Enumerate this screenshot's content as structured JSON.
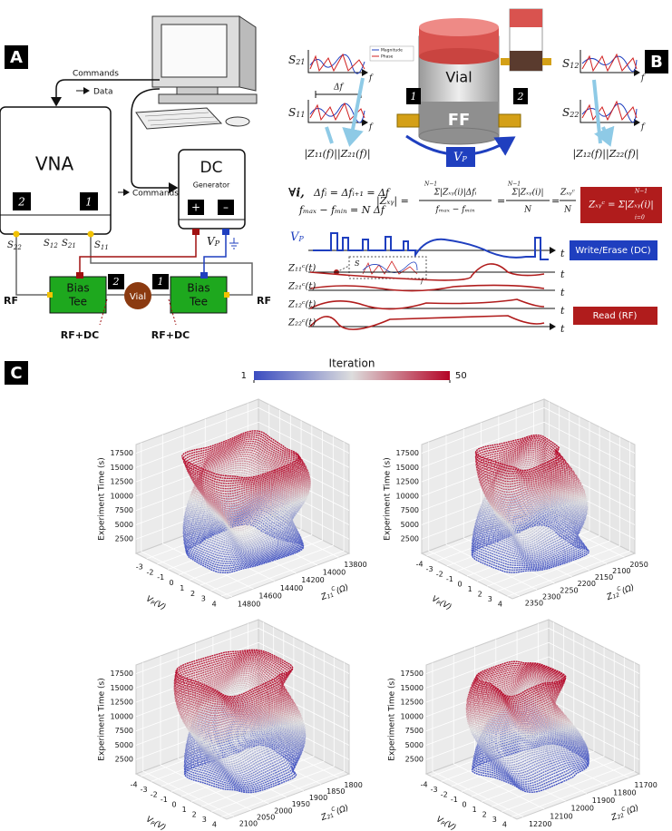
{
  "panel_a": {
    "label": "A",
    "commands_top": "Commands",
    "data": "Data",
    "vna": "VNA",
    "vna_port2": "2",
    "vna_port1": "1",
    "dc": "DC",
    "generator": "Generator",
    "plus": "+",
    "minus": "–",
    "commands_mid": "Commands",
    "s22": [
      "S",
      "22"
    ],
    "s12": [
      "S",
      "12"
    ],
    "s21": [
      "S",
      "21"
    ],
    "s11": [
      "S",
      "11"
    ],
    "vp": [
      "V",
      "P"
    ],
    "rf_left": "RF",
    "rf_right": "RF",
    "bias_tee_left": [
      "Bias",
      "Tee"
    ],
    "bias_tee_right": [
      "Bias",
      "Tee"
    ],
    "tee_port2": "2",
    "tee_port1": "1",
    "vial": "Vial",
    "rfdc_left": "RF+DC",
    "rfdc_right": "RF+DC"
  },
  "panel_b": {
    "label": "B",
    "s21": [
      "S",
      "21"
    ],
    "s11": [
      "S",
      "11"
    ],
    "s12": [
      "S",
      "12"
    ],
    "s22": [
      "S",
      "22"
    ],
    "delta_f": "Δf",
    "f": "f",
    "legend": [
      "Magnitude",
      "Phase"
    ],
    "vial": "Vial",
    "ff": "FF",
    "port1": "1",
    "port2": "2",
    "vp": [
      "V",
      "P"
    ],
    "z_left": "|Z₁₁(f)||Z₂₁(f)|",
    "z_right": "|Z₁₂(f)||Z₂₂(f)|",
    "forall": "∀i,",
    "step": "Δfᵢ = Δfᵢ₊₁ = Δf",
    "span": "fₘₐₓ − fₘᵢₙ = N Δf",
    "mean": "|Z̄ₓᵧ| =",
    "num1": "Σ|Zₓᵧ(i)|Δfᵢ",
    "den1": "fₘₐₓ − fₘᵢₙ",
    "eq": "=",
    "num2": "Σ|Zₓᵧ(i)|",
    "den2": "N",
    "num3": "Zₓᵧᶜ",
    "den3": "N",
    "sum_upper": "N−1",
    "sum_lower": "i=0",
    "total": "Zₓᵧᶜ = Σ|Zₓᵧ(i)|",
    "inset_s": "S",
    "t": "t",
    "write_erase": "Write/Erase (DC)",
    "read": "Read (RF)",
    "traces": [
      "Z₁₁ᶜ(t)",
      "Z₂₁ᶜ(t)",
      "Z₁₂ᶜ(t)",
      "Z₂₂ᶜ(t)"
    ]
  },
  "panel_c": {
    "label": "C",
    "colorbar": {
      "title": "Iteration",
      "min": 1,
      "max": 50,
      "colors": [
        "#3b4cc0",
        "#dddddd",
        "#b40426"
      ]
    },
    "plots": [
      {
        "zlabel": "Experiment Time (s)",
        "tlim": [
          0,
          19000
        ],
        "tticks": [
          2500,
          5000,
          7500,
          10000,
          12500,
          15000,
          17500
        ],
        "xlabel": [
          "V",
          "P",
          "(V)"
        ],
        "xlim": [
          -4,
          4.5
        ],
        "xticks": [
          -3,
          -2,
          -1,
          0,
          1,
          2,
          3,
          4
        ],
        "ylabel": [
          "Z",
          "11",
          "C",
          "(Ω)"
        ],
        "ylim": [
          13700,
          14850
        ],
        "yticks": [
          13800,
          14000,
          14200,
          14400,
          14600,
          14800
        ]
      },
      {
        "zlabel": "Experiment Time (s)",
        "tlim": [
          0,
          19000
        ],
        "tticks": [
          2500,
          5000,
          7500,
          10000,
          12500,
          15000,
          17500
        ],
        "xlabel": [
          "V",
          "P",
          "(V)"
        ],
        "xlim": [
          -4.5,
          4.5
        ],
        "xticks": [
          -4,
          -3,
          -2,
          -1,
          0,
          1,
          2,
          3,
          4
        ],
        "ylabel": [
          "Z",
          "12",
          "C",
          "(Ω)"
        ],
        "ylim": [
          2020,
          2370
        ],
        "yticks": [
          2050,
          2100,
          2150,
          2200,
          2250,
          2300,
          2350
        ]
      },
      {
        "zlabel": "Experiment Time (s)",
        "tlim": [
          0,
          19000
        ],
        "tticks": [
          2500,
          5000,
          7500,
          10000,
          12500,
          15000,
          17500
        ],
        "xlabel": [
          "V",
          "P",
          "(V)"
        ],
        "xlim": [
          -4.5,
          4.5
        ],
        "xticks": [
          -4,
          -3,
          -2,
          -1,
          0,
          1,
          2,
          3,
          4
        ],
        "ylabel": [
          "Z",
          "21",
          "C",
          "(Ω)"
        ],
        "ylim": [
          1770,
          2120
        ],
        "yticks": [
          1800,
          1850,
          1900,
          1950,
          2000,
          2050,
          2100
        ]
      },
      {
        "zlabel": "Experiment Time (s)",
        "tlim": [
          0,
          19000
        ],
        "tticks": [
          2500,
          5000,
          7500,
          10000,
          12500,
          15000,
          17500
        ],
        "xlabel": [
          "V",
          "P",
          "(V)"
        ],
        "xlim": [
          -4.5,
          4.5
        ],
        "xticks": [
          -4,
          -3,
          -2,
          -1,
          0,
          1,
          2,
          3,
          4
        ],
        "ylabel": [
          "Z",
          "22",
          "C",
          "(Ω)"
        ],
        "ylim": [
          11650,
          12230
        ],
        "yticks": [
          11700,
          11800,
          11900,
          12000,
          12100,
          12200
        ]
      }
    ]
  }
}
